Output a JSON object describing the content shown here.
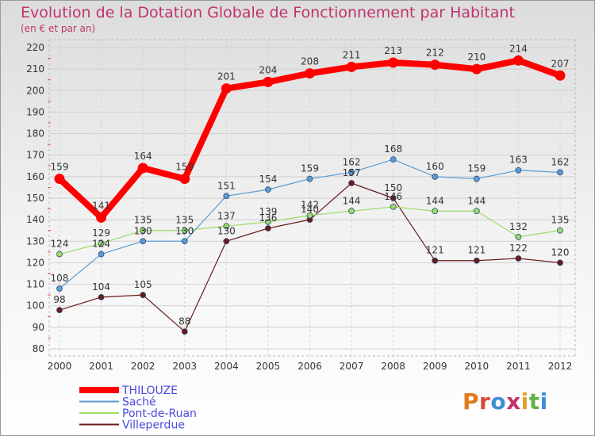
{
  "chart_data": {
    "type": "line",
    "title": "Evolution de la Dotation Globale de Fonctionnement par Habitant",
    "subtitle": "(en € et par an)",
    "x": [
      "2000",
      "2001",
      "2002",
      "2003",
      "2004",
      "2005",
      "2006",
      "2007",
      "2008",
      "2009",
      "2010",
      "2011",
      "2012"
    ],
    "ylim": [
      80,
      220
    ],
    "yticks": [
      80,
      90,
      100,
      110,
      120,
      130,
      140,
      150,
      160,
      170,
      180,
      190,
      200,
      210,
      220
    ],
    "grid": true,
    "legend_position": "bottom-left",
    "series": [
      {
        "name": "THILOUZE",
        "color": "#ff0000",
        "values": [
          159,
          141,
          164,
          159,
          201,
          204,
          208,
          211,
          213,
          212,
          210,
          214,
          207
        ]
      },
      {
        "name": "Saché",
        "color": "#5b9bd5",
        "values": [
          108,
          124,
          130,
          130,
          151,
          154,
          159,
          162,
          168,
          160,
          159,
          163,
          162
        ]
      },
      {
        "name": "Pont-de-Ruan",
        "color": "#99dd66",
        "values": [
          124,
          129,
          135,
          135,
          137,
          139,
          142,
          144,
          146,
          144,
          144,
          132,
          135
        ]
      },
      {
        "name": "Villeperdue",
        "color": "#6b1a1a",
        "values": [
          98,
          104,
          105,
          88,
          130,
          136,
          140,
          157,
          150,
          121,
          121,
          122,
          120
        ]
      }
    ]
  },
  "branding": {
    "logo_text": "Proxiti"
  }
}
